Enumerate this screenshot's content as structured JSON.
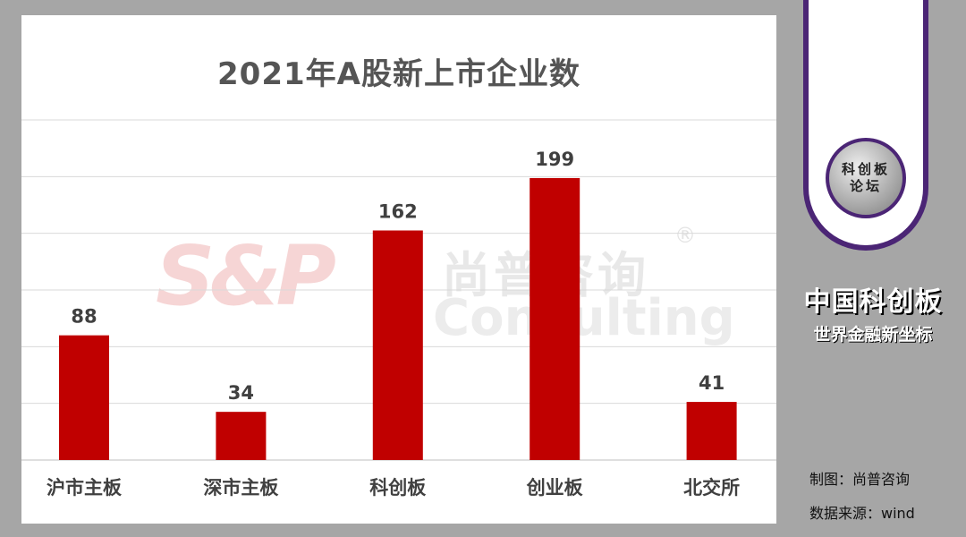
{
  "chart_data": {
    "type": "bar",
    "title": "2021年A股新上市企业数",
    "categories": [
      "沪市主板",
      "深市主板",
      "科创板",
      "创业板",
      "北交所"
    ],
    "values": [
      88,
      34,
      162,
      199,
      41
    ],
    "ylim": [
      0,
      240
    ],
    "grid": true,
    "bar_color": "#c00000",
    "xlabel": "",
    "ylabel": ""
  },
  "watermark": {
    "logo": "S&P",
    "chinese": "尚普咨询",
    "english": "Consulting",
    "registered": "®"
  },
  "sidebar": {
    "badge_line1": "科创板",
    "badge_line2": "论坛",
    "brand_title": "中国科创板",
    "brand_slogan": "世界金融新坐标",
    "credit_chart": "制图：尚普咨询",
    "credit_source": "数据来源：wind"
  },
  "colors": {
    "background": "#a6a6a6",
    "bar": "#c00000",
    "frame": "#4b2575"
  }
}
